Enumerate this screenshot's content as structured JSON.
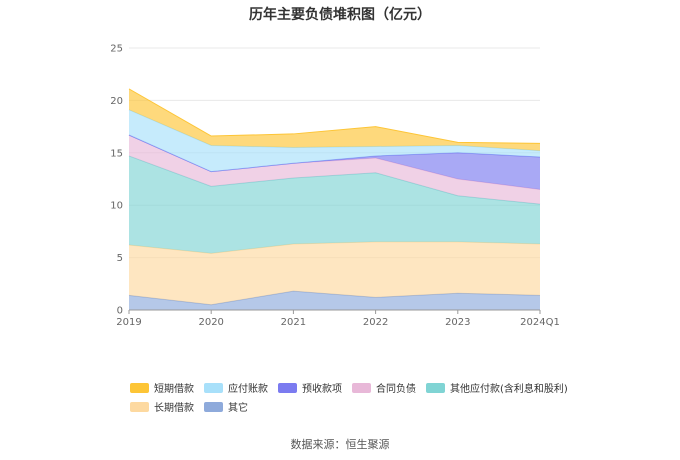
{
  "chart_data": {
    "type": "area",
    "stacked": true,
    "title": "历年主要负债堆积图（亿元）",
    "categories": [
      "2019",
      "2020",
      "2021",
      "2022",
      "2023",
      "2024Q1"
    ],
    "ylim": [
      0,
      25
    ],
    "yticks": [
      "0",
      "5",
      "10",
      "15",
      "20",
      "25"
    ],
    "grid": true,
    "legend_position": "bottom",
    "series": [
      {
        "name": "其它",
        "color": "#8eaadb",
        "values": [
          1.4,
          0.5,
          1.8,
          1.2,
          1.6,
          1.4
        ]
      },
      {
        "name": "长期借款",
        "color": "#fdd9a0",
        "values": [
          4.8,
          4.9,
          4.5,
          5.3,
          4.9,
          4.9
        ]
      },
      {
        "name": "其他应付款(含利息和股利)",
        "color": "#80d4d4",
        "values": [
          8.5,
          6.4,
          6.3,
          6.6,
          4.4,
          3.8
        ]
      },
      {
        "name": "合同负债",
        "color": "#e8b8d8",
        "values": [
          2.0,
          1.4,
          1.4,
          1.4,
          1.6,
          1.4
        ]
      },
      {
        "name": "预收款项",
        "color": "#7b7bf0",
        "values": [
          0.0,
          0.0,
          0.0,
          0.2,
          2.5,
          3.1
        ]
      },
      {
        "name": "应付账款",
        "color": "#a8e0fa",
        "values": [
          2.4,
          2.5,
          1.5,
          0.9,
          0.7,
          0.6
        ]
      },
      {
        "name": "短期借款",
        "color": "#fdc536",
        "values": [
          2.0,
          0.9,
          1.3,
          1.9,
          0.3,
          0.7
        ]
      }
    ],
    "legend_rows": [
      [
        "短期借款",
        "应付账款",
        "预收款项",
        "合同负债",
        "其他应付款(含利息和股利)"
      ],
      [
        "长期借款",
        "其它"
      ]
    ]
  },
  "source_text": "数据来源：恒生聚源"
}
